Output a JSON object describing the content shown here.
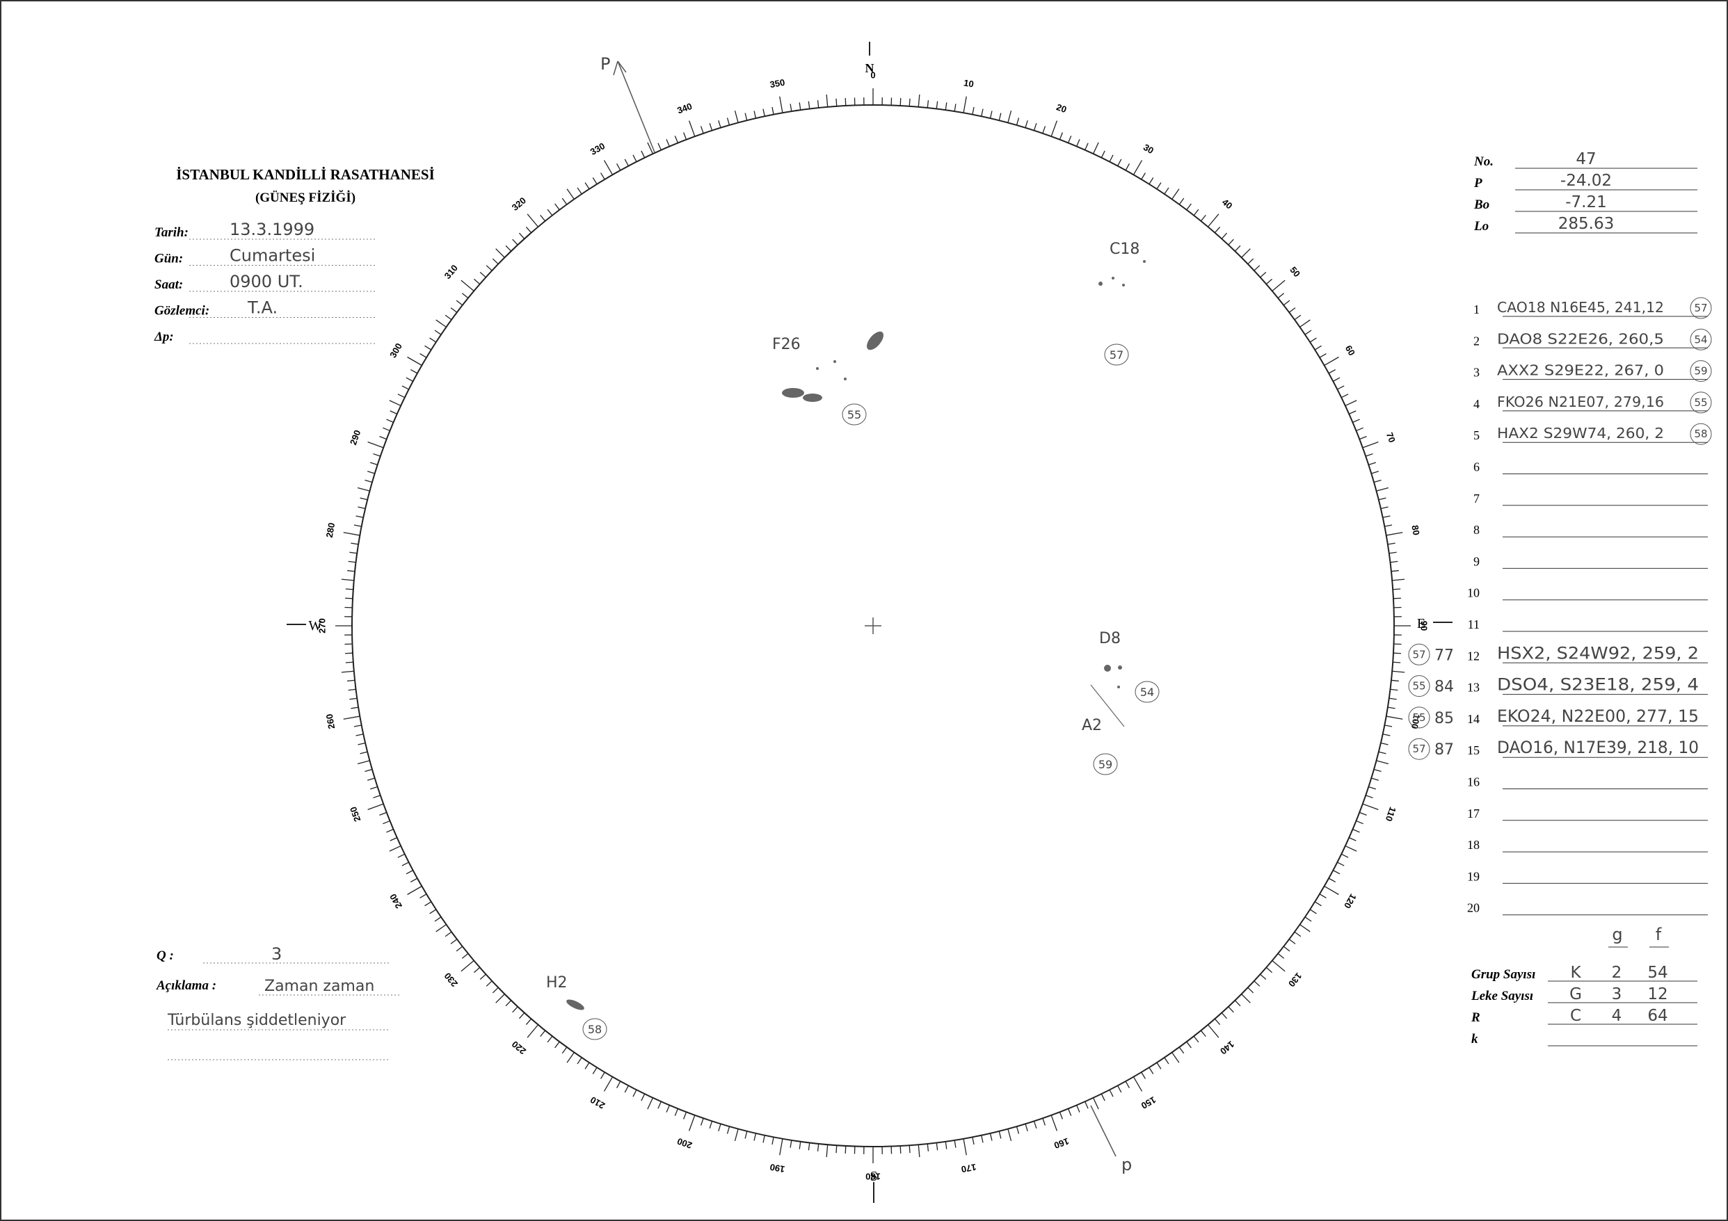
{
  "header": {
    "title": "İSTANBUL KANDİLLİ RASATHANESİ",
    "subtitle": "(GÜNEŞ FİZİĞİ)"
  },
  "fields": [
    {
      "label": "Tarih:",
      "value": "13.3.1999"
    },
    {
      "label": "Gün:",
      "value": "Cumartesi"
    },
    {
      "label": "Saat:",
      "value": "0900 UT."
    },
    {
      "label": "Gözlemci:",
      "value": "T.A."
    },
    {
      "label": "Δp:"
    }
  ],
  "parameters": [
    {
      "label": "No.",
      "value": "47"
    },
    {
      "label": "P",
      "value": "-24.02"
    },
    {
      "label": "Bo",
      "value": "-7.21"
    },
    {
      "label": "Lo",
      "value": "285.63"
    }
  ],
  "groups": [
    {
      "number": "1",
      "text": "CAO18 N16E45, 241,12",
      "mark": "57"
    },
    {
      "number": "2",
      "text": "DAO8 S22E26, 260,5",
      "mark": "54"
    },
    {
      "number": "3",
      "text": "AXX2 S29E22, 267, 0",
      "mark": "59"
    },
    {
      "number": "4",
      "text": "FKO26 N21E07, 279,16",
      "mark": "55"
    },
    {
      "number": "5",
      "text": "HAX2 S29W74, 260, 2",
      "mark": "58"
    },
    {
      "number": "6"
    },
    {
      "number": "7"
    },
    {
      "number": "8"
    },
    {
      "number": "9"
    },
    {
      "number": "10"
    },
    {
      "number": "11"
    },
    {
      "number": "12",
      "text": "HSX2, S24W92, 259, 2",
      "note": "57",
      "note_value": "77"
    },
    {
      "number": "13",
      "text": "DSO4, S23E18, 259, 4",
      "note": "55",
      "note_value": "84"
    },
    {
      "number": "14",
      "text": "EKO24, N22E00, 277, 15",
      "note": "55",
      "note_value": "85"
    },
    {
      "number": "15",
      "text": "DAO16, N17E39, 218, 10",
      "note": "57",
      "note_value": "87"
    },
    {
      "number": "16"
    },
    {
      "number": "17"
    },
    {
      "number": "18"
    },
    {
      "number": "19"
    },
    {
      "number": "20"
    }
  ],
  "counts": {
    "headers": [
      "g",
      "f"
    ],
    "rows": [
      {
        "label": "Grup Sayısı",
        "values": [
          "K",
          "2",
          "54"
        ]
      },
      {
        "label": "Leke Sayısı",
        "values": [
          "G",
          "3",
          "12"
        ]
      },
      {
        "label": "R",
        "values": [
          "C",
          "4",
          "64"
        ]
      },
      {
        "label": "k"
      }
    ]
  },
  "quality": {
    "label": "Q :",
    "value": "3"
  },
  "remarks": {
    "label": "Açıklama :",
    "lines": [
      "Zaman zaman",
      "Türbülans şiddetleniyor"
    ]
  },
  "disk": {
    "directions": {
      "north": "N",
      "south": "S",
      "east": "E",
      "west": "W",
      "pole_north": "P",
      "pole_south": "p"
    },
    "dial_labels": [
      "0",
      "10",
      "20",
      "30",
      "40",
      "50",
      "60",
      "70",
      "80",
      "90",
      "100",
      "110",
      "120",
      "130",
      "140",
      "150",
      "160",
      "170",
      "180",
      "190",
      "200",
      "210",
      "220",
      "230",
      "240",
      "250",
      "260",
      "270",
      "280",
      "290",
      "300",
      "310",
      "320",
      "330",
      "340",
      "350"
    ],
    "spots": [
      {
        "label": "F26",
        "mark": "55"
      },
      {
        "label": "C18",
        "mark": "57"
      },
      {
        "label": "D8",
        "mark": "54"
      },
      {
        "label": "A2",
        "mark": "59"
      },
      {
        "label": "H2",
        "mark": "58"
      }
    ]
  }
}
